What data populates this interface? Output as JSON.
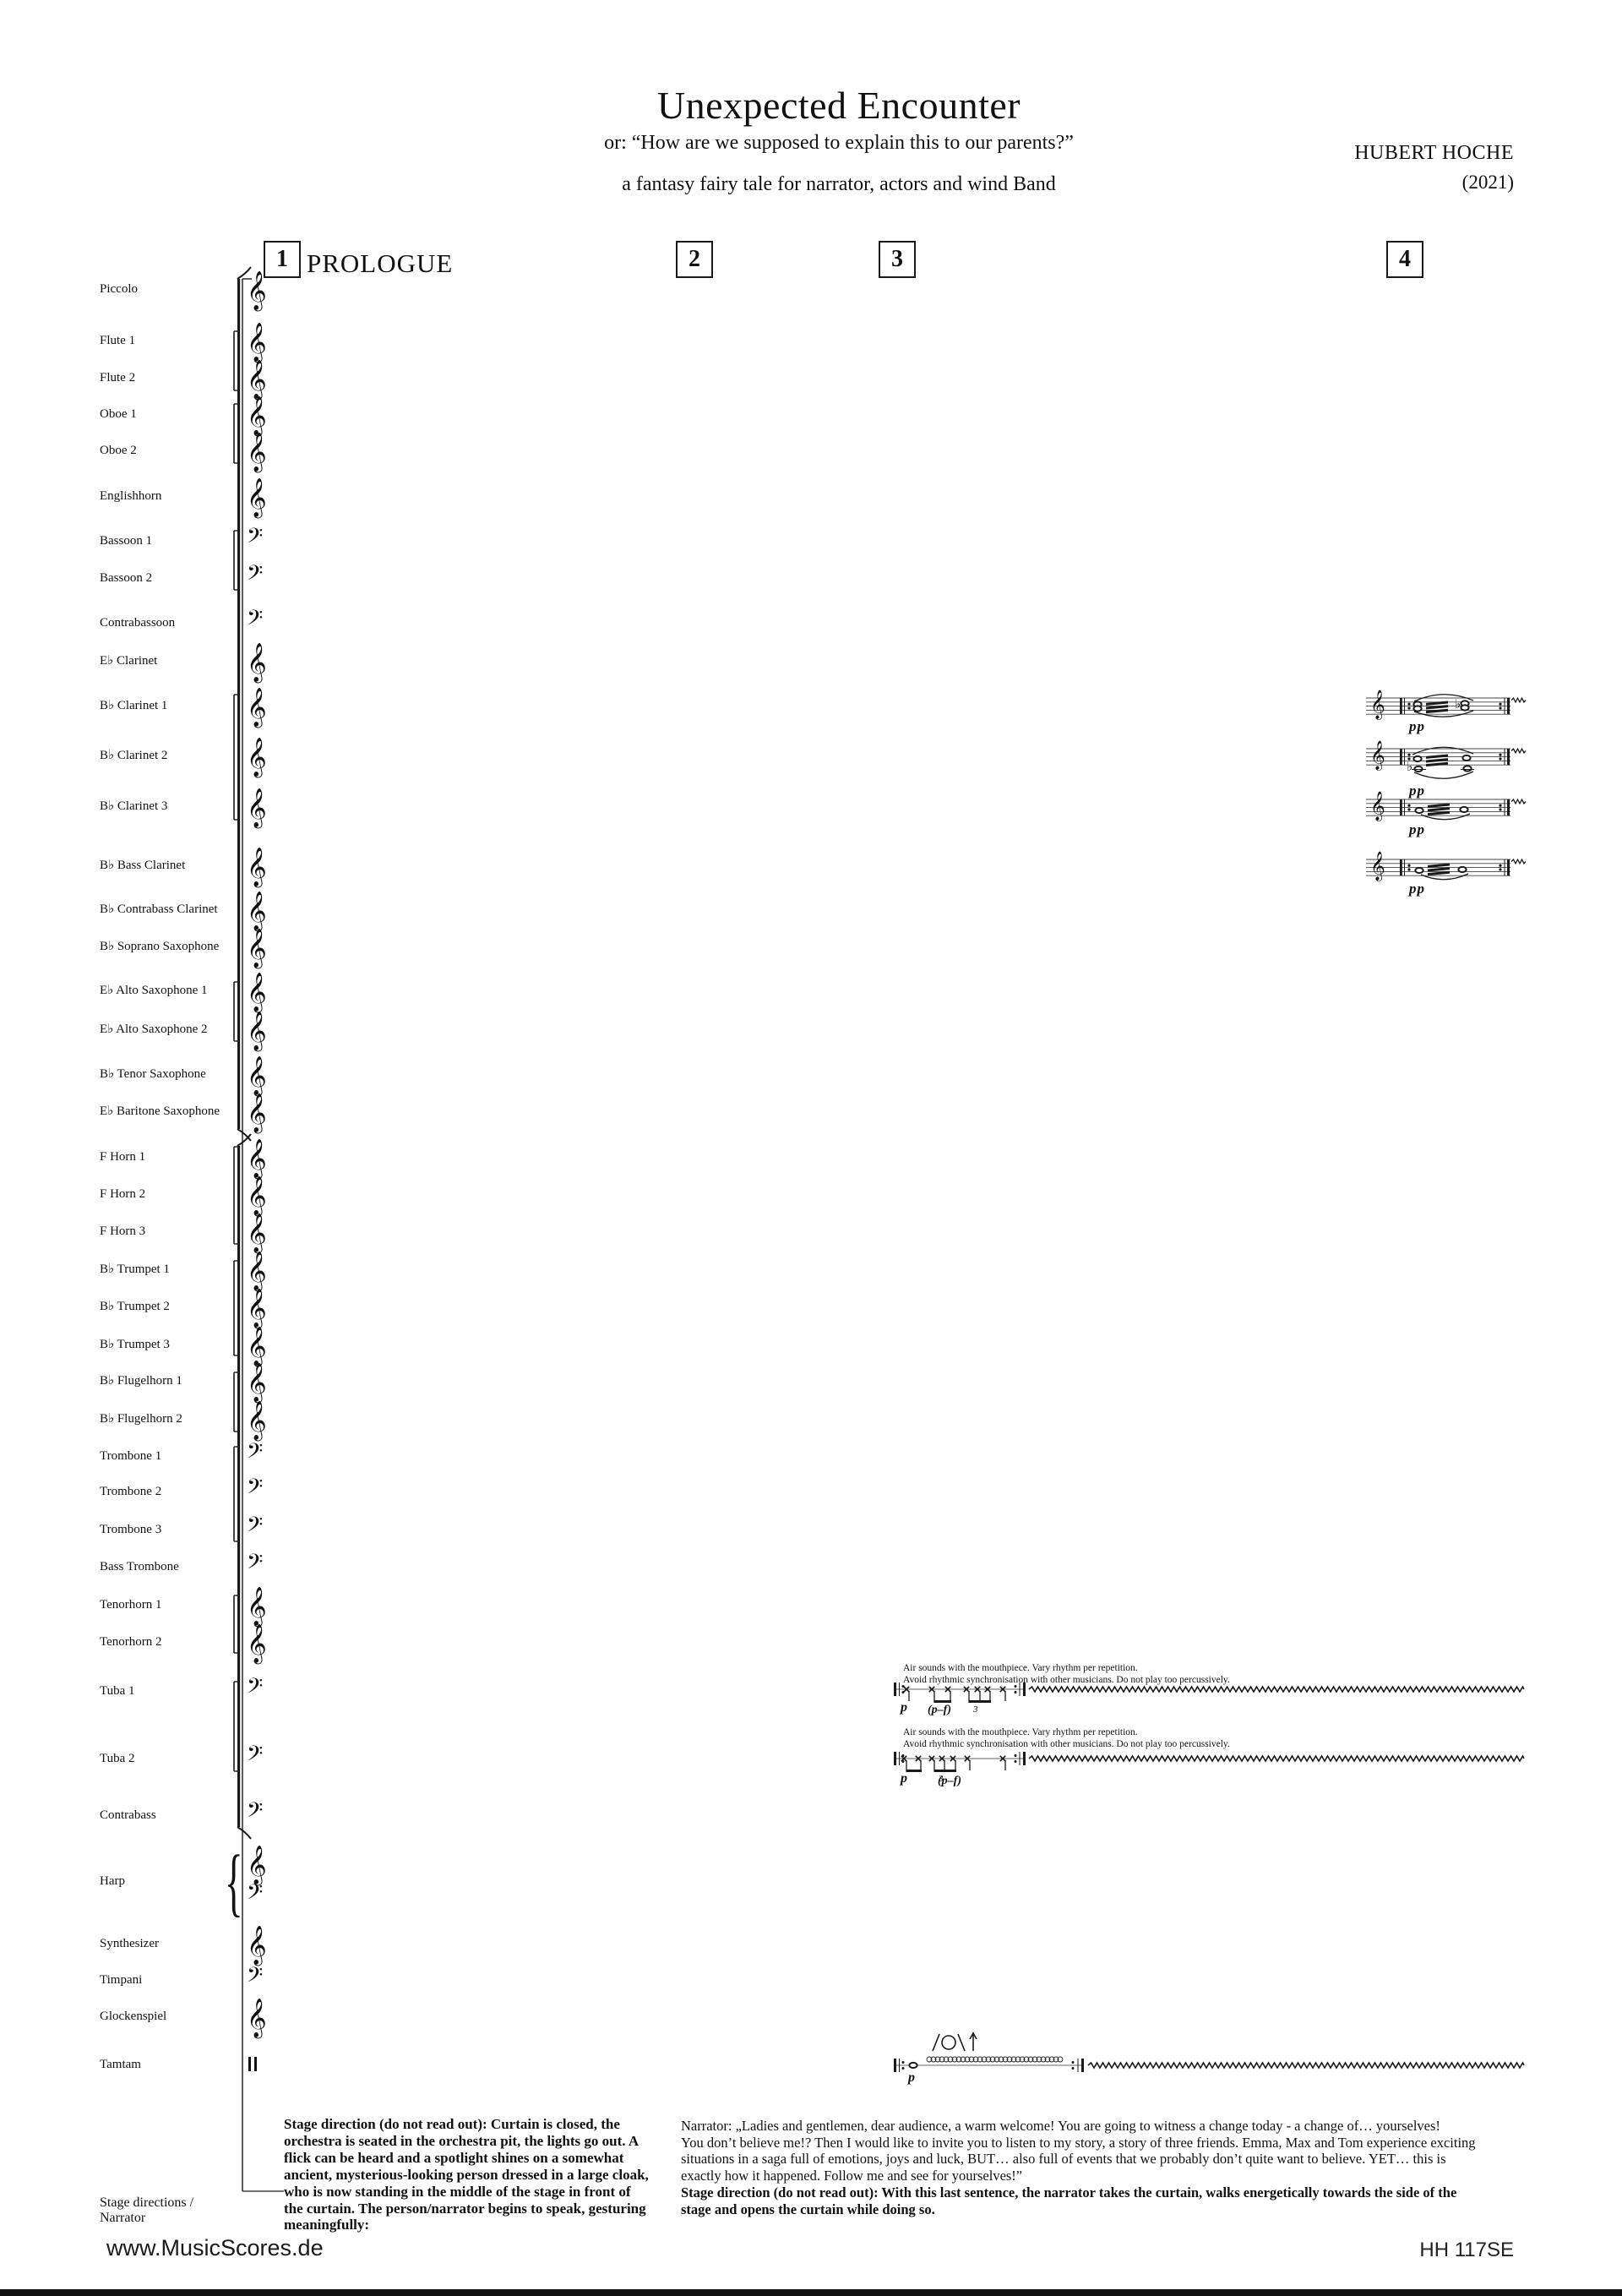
{
  "header": {
    "title": "Unexpected Encounter",
    "subtitle": "or: “How are we supposed to explain this to our parents?”",
    "tagline": "a fantasy fairy tale  for narrator, actors and wind Band",
    "composer": "HUBERT HOCHE",
    "year": "(2021)"
  },
  "score": {
    "prologue_label": "PROLOGUE",
    "measure_numbers": [
      "1",
      "2",
      "3",
      "4"
    ],
    "icons": {
      "treble_clef": "𝄞",
      "bass_clef": "𝄢",
      "brace": "{",
      "flat": "♭"
    },
    "instruments": [
      {
        "name": "Piccolo",
        "clef": "treble"
      },
      {
        "name": "Flute 1",
        "clef": "treble"
      },
      {
        "name": "Flute 2",
        "clef": "treble"
      },
      {
        "name": "Oboe 1",
        "clef": "treble"
      },
      {
        "name": "Oboe 2",
        "clef": "treble"
      },
      {
        "name": "Englishhorn",
        "clef": "treble"
      },
      {
        "name": "Bassoon 1",
        "clef": "bass"
      },
      {
        "name": "Bassoon 2",
        "clef": "bass"
      },
      {
        "name": "Contrabassoon",
        "clef": "bass"
      },
      {
        "name": "E♭ Clarinet",
        "clef": "treble"
      },
      {
        "name": "B♭ Clarinet 1",
        "clef": "treble"
      },
      {
        "name": "B♭ Clarinet 2",
        "clef": "treble"
      },
      {
        "name": "B♭ Clarinet 3",
        "clef": "treble"
      },
      {
        "name": "B♭ Bass Clarinet",
        "clef": "treble"
      },
      {
        "name": "B♭ Contrabass Clarinet",
        "clef": "treble"
      },
      {
        "name": "B♭ Soprano Saxophone",
        "clef": "treble"
      },
      {
        "name": "E♭ Alto Saxophone 1",
        "clef": "treble"
      },
      {
        "name": "E♭ Alto Saxophone 2",
        "clef": "treble"
      },
      {
        "name": "B♭ Tenor Saxophone",
        "clef": "treble"
      },
      {
        "name": "E♭ Baritone Saxophone",
        "clef": "treble"
      },
      {
        "name": "F Horn 1",
        "clef": "treble"
      },
      {
        "name": "F Horn 2",
        "clef": "treble"
      },
      {
        "name": "F Horn 3",
        "clef": "treble"
      },
      {
        "name": "B♭ Trumpet 1",
        "clef": "treble"
      },
      {
        "name": "B♭ Trumpet 2",
        "clef": "treble"
      },
      {
        "name": "B♭ Trumpet 3",
        "clef": "treble"
      },
      {
        "name": "B♭ Flugelhorn 1",
        "clef": "treble"
      },
      {
        "name": "B♭ Flugelhorn 2",
        "clef": "treble"
      },
      {
        "name": "Trombone 1",
        "clef": "bass"
      },
      {
        "name": "Trombone 2",
        "clef": "bass"
      },
      {
        "name": "Trombone 3",
        "clef": "bass"
      },
      {
        "name": "Bass Trombone",
        "clef": "bass"
      },
      {
        "name": "Tenorhorn 1",
        "clef": "treble"
      },
      {
        "name": "Tenorhorn 2",
        "clef": "treble"
      },
      {
        "name": "Tuba 1",
        "clef": "bass"
      },
      {
        "name": "Tuba 2",
        "clef": "bass"
      },
      {
        "name": "Contrabass",
        "clef": "bass"
      },
      {
        "name": "Harp",
        "clef": "grand"
      },
      {
        "name": "Synthesizer",
        "clef": "treble"
      },
      {
        "name": "Timpani",
        "clef": "bass"
      },
      {
        "name": "Glockenspiel",
        "clef": "treble"
      },
      {
        "name": "Tamtam",
        "clef": "perc"
      }
    ],
    "tuba_instruction_lines": [
      "Air sounds with the mouthpiece. Vary rhythm per repetition.",
      "Avoid rhythmic synchronisation with other musicians. Do not play too percussively."
    ],
    "dynamics": {
      "pp": "pp",
      "p": "p",
      "pf": "(p–f)"
    },
    "triplet_label": "3"
  },
  "stage_direction_left": {
    "lines": [
      "Stage direction (do not read out): Curtain is closed, the",
      "orchestra is seated in the orchestra pit, the lights go out. A",
      "flick can be heard and a spotlight shines on a somewhat",
      "ancient, mysterious-looking person dressed in a large cloak,",
      "who is now standing in the middle of the stage in front of",
      "the curtain. The person/narrator begins to speak, gesturing",
      "meaningfully:"
    ]
  },
  "narrator_block": {
    "label_lines": [
      "Stage directions /",
      "Narrator"
    ],
    "text_lines": [
      "Narrator: „Ladies and gentlemen, dear audience, a warm welcome! You are going to witness a change today - a change of… yourselves!",
      "You don’t believe me!? Then I would like to invite you to listen to my story, a story of three friends. Emma, Max and Tom experience exciting",
      "situations in a saga full of emotions, joys and luck, BUT… also full of events that we probably don’t quite want to believe. YET… this is",
      "exactly how it happened. Follow me and see for yourselves!”"
    ],
    "bold_lines": [
      "Stage direction (do not read out): With this last sentence, the narrator takes the curtain, walks energetically towards the side of the",
      "stage and opens the curtain while doing so."
    ]
  },
  "footer": {
    "website": "www.MusicScores.de",
    "catalog": "HH 117SE"
  }
}
